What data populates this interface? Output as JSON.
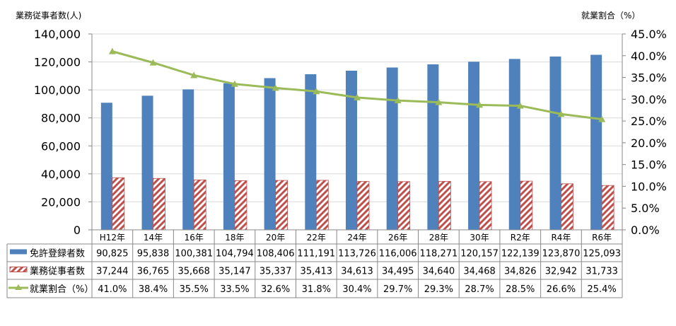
{
  "chart_data": {
    "type": "bar+line",
    "left_axis_title": "業務従事者数(人)",
    "right_axis_title": "就業割合（%）",
    "categories": [
      "H12年",
      "14年",
      "16年",
      "18年",
      "20年",
      "22年",
      "24年",
      "26年",
      "28年",
      "30年",
      "R2年",
      "R4年",
      "R6年"
    ],
    "left_ylim": [
      0,
      140000
    ],
    "left_ticks": [
      "0",
      "20,000",
      "40,000",
      "60,000",
      "80,000",
      "100,000",
      "120,000",
      "140,000"
    ],
    "right_ylim": [
      0,
      45
    ],
    "right_ticks": [
      "0.0%",
      "5.0%",
      "10.0%",
      "15.0%",
      "20.0%",
      "25.0%",
      "30.0%",
      "35.0%",
      "40.0%",
      "45.0%"
    ],
    "series": [
      {
        "name": "免許登録者数",
        "type": "bar",
        "axis": "left",
        "color": "#4F81BD",
        "values": [
          90825,
          95838,
          100381,
          104794,
          108406,
          111191,
          113726,
          116006,
          118271,
          120157,
          122139,
          123870,
          125093
        ],
        "labels": [
          "90,825",
          "95,838",
          "100,381",
          "104,794",
          "108,406",
          "111,191",
          "113,726",
          "116,006",
          "118,271",
          "120,157",
          "122,139",
          "123,870",
          "125,093"
        ]
      },
      {
        "name": "業務従事者数",
        "type": "bar-hatched",
        "axis": "left",
        "color": "#C0504D",
        "values": [
          37244,
          36765,
          35668,
          35147,
          35337,
          35413,
          34613,
          34495,
          34640,
          34468,
          34826,
          32942,
          31733
        ],
        "labels": [
          "37,244",
          "36,765",
          "35,668",
          "35,147",
          "35,337",
          "35,413",
          "34,613",
          "34,495",
          "34,640",
          "34,468",
          "34,826",
          "32,942",
          "31,733"
        ]
      },
      {
        "name": "就業割合（%）",
        "type": "line",
        "axis": "right",
        "color": "#9BBB59",
        "values": [
          41.0,
          38.4,
          35.5,
          33.5,
          32.6,
          31.8,
          30.4,
          29.7,
          29.3,
          28.7,
          28.5,
          26.6,
          25.4
        ],
        "labels": [
          "41.0%",
          "38.4%",
          "35.5%",
          "33.5%",
          "32.6%",
          "31.8%",
          "30.4%",
          "29.7%",
          "29.3%",
          "28.7%",
          "28.5%",
          "26.6%",
          "25.4%"
        ]
      }
    ],
    "grid": true,
    "legend": "data-table-below"
  }
}
